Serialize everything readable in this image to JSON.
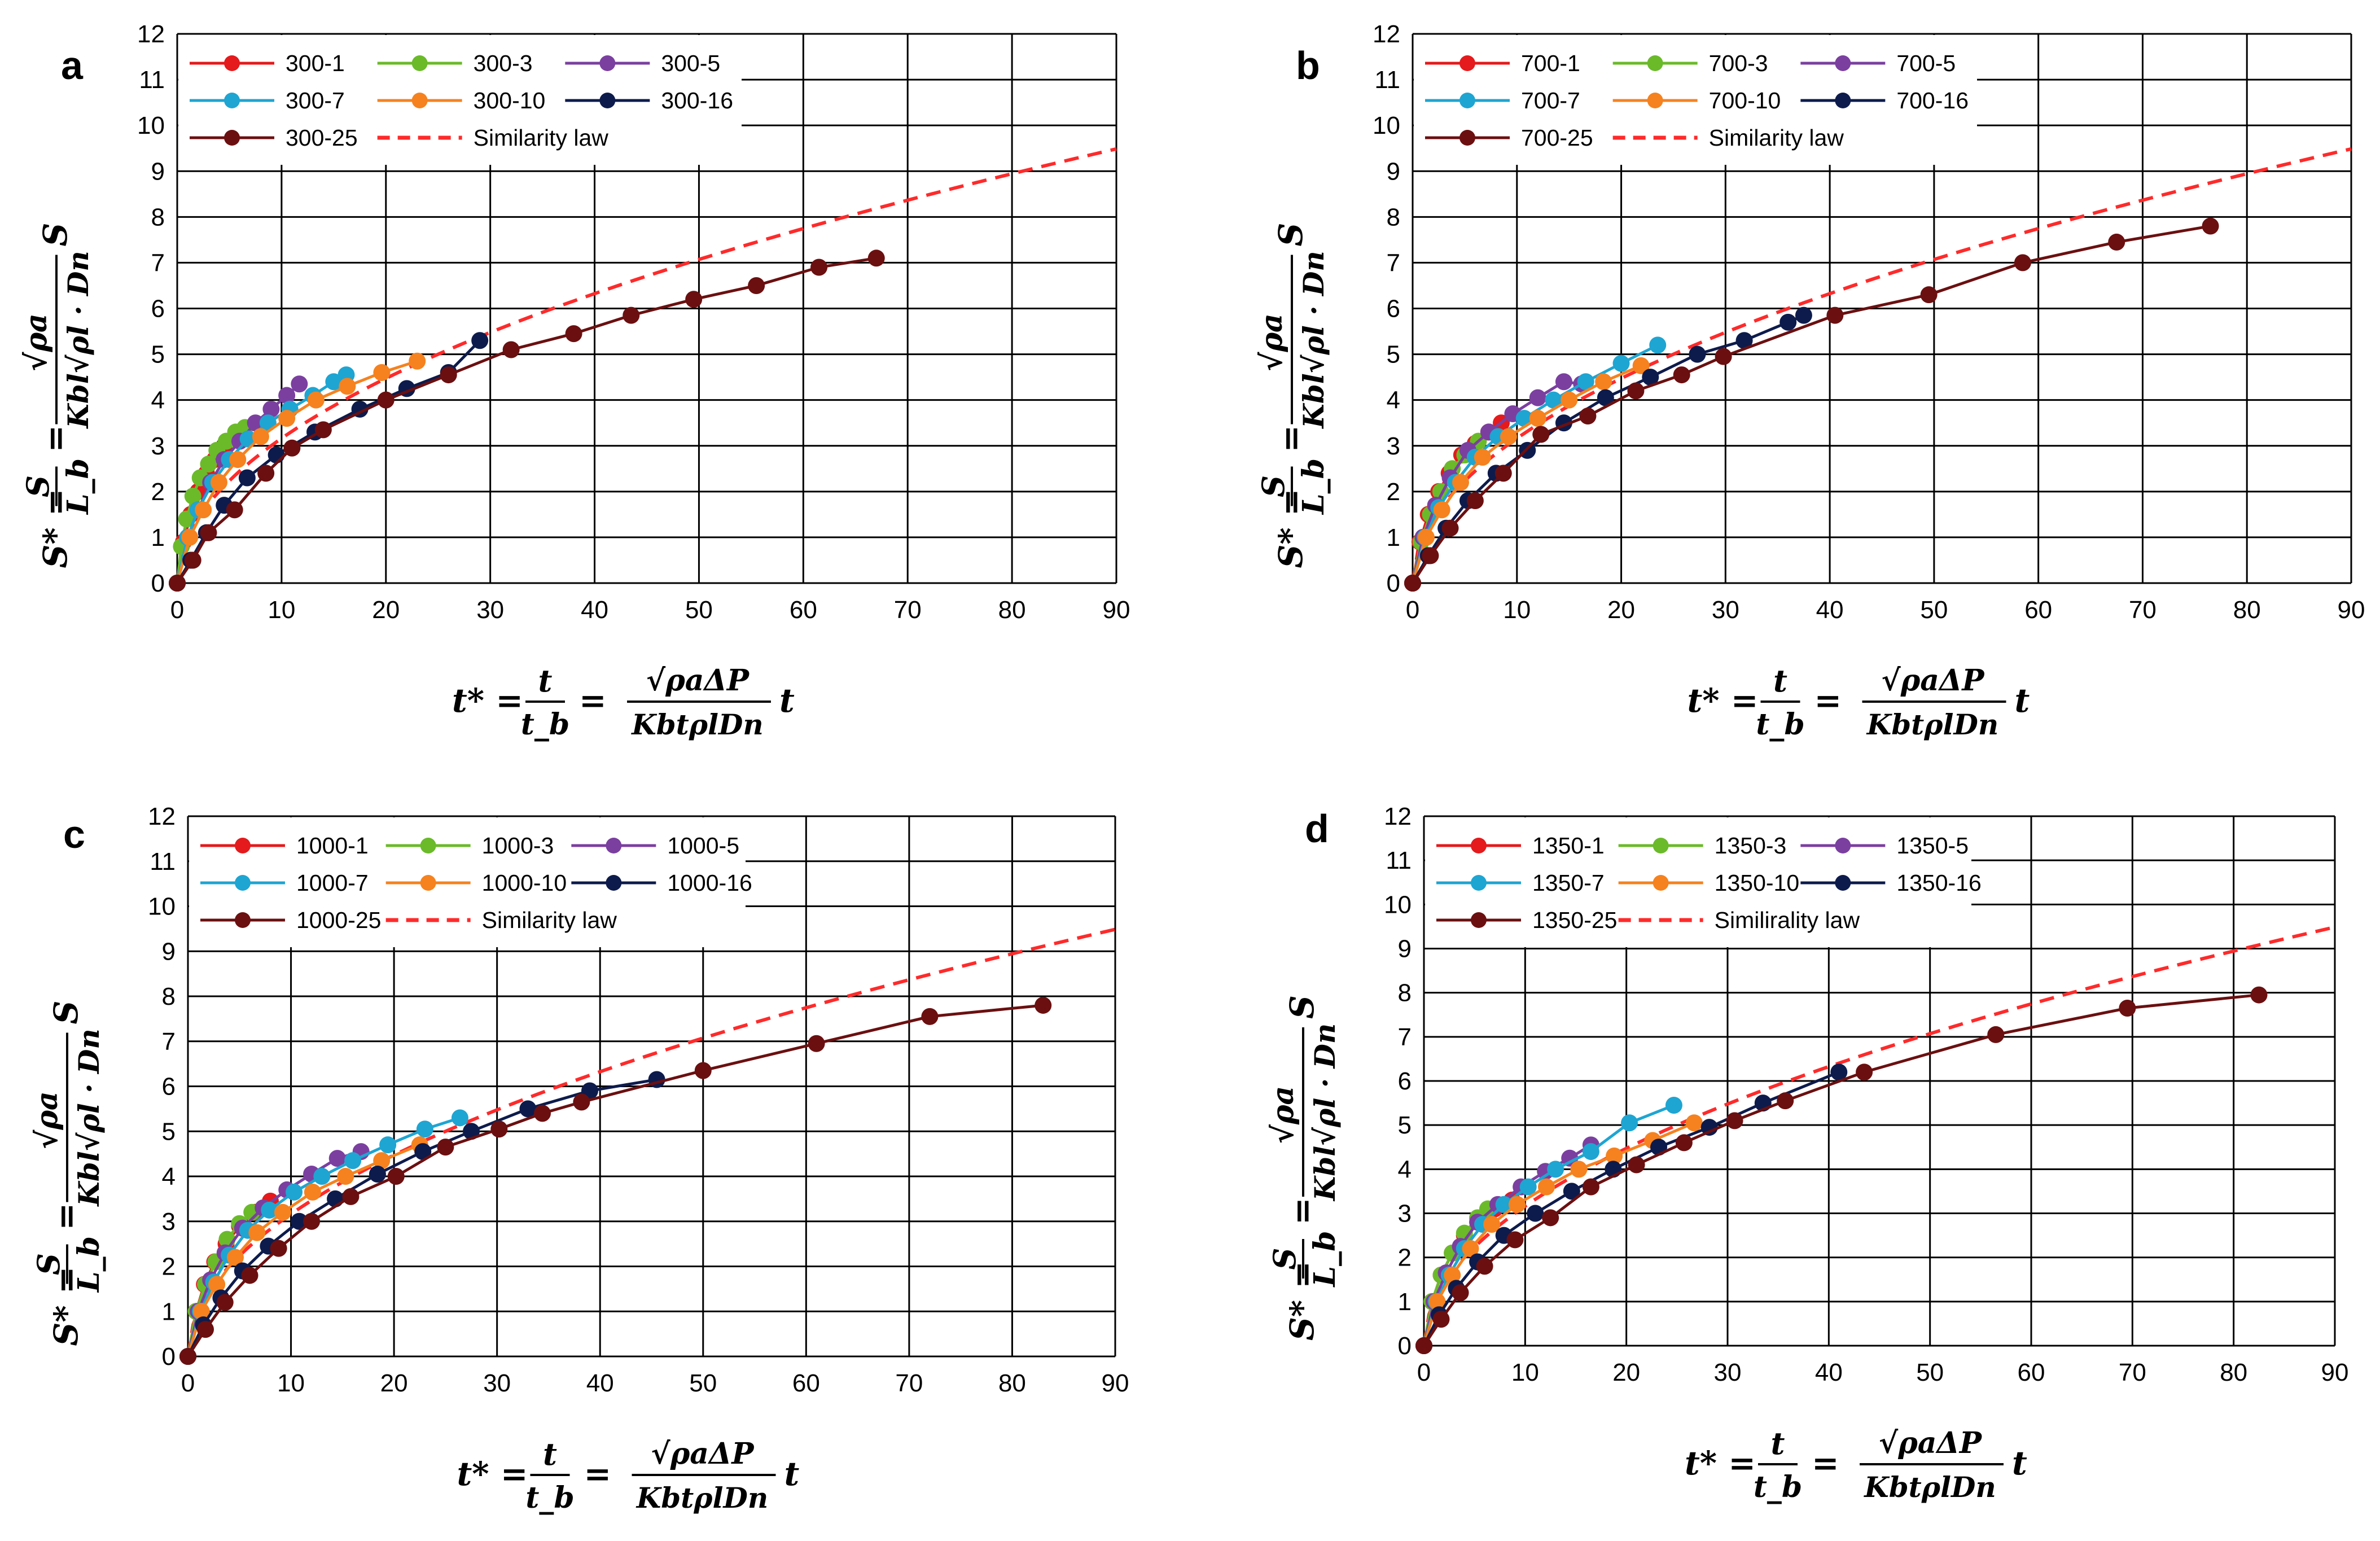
{
  "chart_data": [
    {
      "type": "line",
      "panel_label": "a",
      "xlim": [
        0,
        90
      ],
      "ylim": [
        0,
        12
      ],
      "xticks": [
        "0",
        "10",
        "20",
        "30",
        "40",
        "50",
        "60",
        "70",
        "80",
        "90"
      ],
      "yticks": [
        "0",
        "1",
        "2",
        "3",
        "4",
        "5",
        "6",
        "7",
        "8",
        "9",
        "10",
        "11",
        "12"
      ],
      "grid": true,
      "legend_position": "top-left inside",
      "series": [
        {
          "name": "300-1",
          "color": "#e41a1c",
          "x": [
            0,
            0.6,
            1.3,
            2,
            2.8,
            3.6,
            4.5
          ],
          "y": [
            0,
            0.9,
            1.5,
            2,
            2.4,
            2.7,
            3.0
          ]
        },
        {
          "name": "300-3",
          "color": "#6aba2a",
          "x": [
            0,
            0.4,
            0.9,
            1.5,
            2.2,
            3,
            3.8,
            4.7,
            5.6,
            6.5
          ],
          "y": [
            0,
            0.8,
            1.4,
            1.9,
            2.3,
            2.6,
            2.9,
            3.1,
            3.3,
            3.4
          ]
        },
        {
          "name": "300-5",
          "color": "#7b3fa0",
          "x": [
            0,
            1,
            2,
            3.2,
            4.5,
            6,
            7.5,
            9,
            10.5,
            11.7
          ],
          "y": [
            0,
            1,
            1.6,
            2.2,
            2.7,
            3.1,
            3.5,
            3.8,
            4.1,
            4.35
          ]
        },
        {
          "name": "300-7",
          "color": "#1ea5d2",
          "x": [
            0,
            1,
            2,
            3.4,
            5,
            6.8,
            8.7,
            10.8,
            13,
            15,
            16.2
          ],
          "y": [
            0,
            1,
            1.6,
            2.2,
            2.7,
            3.15,
            3.5,
            3.8,
            4.1,
            4.4,
            4.55
          ]
        },
        {
          "name": "300-10",
          "color": "#f5821f",
          "x": [
            0,
            1.2,
            2.5,
            4,
            5.8,
            8,
            10.5,
            13.3,
            16.3,
            19.6,
            23
          ],
          "y": [
            0,
            1,
            1.6,
            2.2,
            2.7,
            3.2,
            3.6,
            4,
            4.3,
            4.6,
            4.85
          ]
        },
        {
          "name": "300-16",
          "color": "#0d1b4c",
          "x": [
            0,
            1.3,
            2.8,
            4.5,
            6.7,
            9.5,
            13.2,
            17.5,
            22,
            26,
            29
          ],
          "y": [
            0,
            0.5,
            1.1,
            1.7,
            2.3,
            2.8,
            3.3,
            3.8,
            4.25,
            4.6,
            5.3
          ]
        },
        {
          "name": "300-25",
          "color": "#6b0f10",
          "x": [
            0,
            1.5,
            3,
            5.5,
            8.5,
            11,
            14,
            20,
            26,
            32,
            38,
            43.5,
            49.5,
            55.5,
            61.5,
            67
          ],
          "y": [
            0,
            0.5,
            1.1,
            1.6,
            2.4,
            2.95,
            3.35,
            4.0,
            4.55,
            5.1,
            5.45,
            5.85,
            6.2,
            6.5,
            6.9,
            7.1
          ]
        },
        {
          "name": "Similarity law",
          "color": "#ff2a2a",
          "dashed": true,
          "x": [],
          "y": []
        }
      ]
    },
    {
      "type": "line",
      "panel_label": "b",
      "xlim": [
        0,
        90
      ],
      "ylim": [
        0,
        12
      ],
      "xticks": [
        "0",
        "10",
        "20",
        "30",
        "40",
        "50",
        "60",
        "70",
        "80",
        "90"
      ],
      "yticks": [
        "0",
        "1",
        "2",
        "3",
        "4",
        "5",
        "6",
        "7",
        "8",
        "9",
        "10",
        "11",
        "12"
      ],
      "grid": true,
      "legend_position": "top-left inside",
      "series": [
        {
          "name": "700-1",
          "color": "#e41a1c",
          "x": [
            0,
            0.7,
            1.5,
            2.5,
            3.5,
            4.7,
            6,
            7.3,
            8.5
          ],
          "y": [
            0,
            0.9,
            1.5,
            2,
            2.4,
            2.8,
            3.05,
            3.3,
            3.5
          ]
        },
        {
          "name": "700-3",
          "color": "#6aba2a",
          "x": [
            0,
            0.8,
            1.7,
            2.7,
            3.8,
            5,
            6.3
          ],
          "y": [
            0,
            0.9,
            1.5,
            2,
            2.5,
            2.8,
            3.1
          ]
        },
        {
          "name": "700-5",
          "color": "#7b3fa0",
          "x": [
            0,
            1,
            2.2,
            3.6,
            5.3,
            7.3,
            9.6,
            12,
            14.5,
            16.2
          ],
          "y": [
            0,
            1,
            1.7,
            2.3,
            2.9,
            3.3,
            3.7,
            4.05,
            4.4,
            4.35
          ]
        },
        {
          "name": "700-7",
          "color": "#1ea5d2",
          "x": [
            0,
            1.2,
            2.5,
            4.1,
            6,
            8.2,
            10.7,
            13.5,
            16.6,
            20,
            23.5
          ],
          "y": [
            0,
            1,
            1.65,
            2.2,
            2.75,
            3.2,
            3.6,
            4,
            4.4,
            4.8,
            5.2
          ]
        },
        {
          "name": "700-10",
          "color": "#f5821f",
          "x": [
            0,
            1.3,
            2.8,
            4.6,
            6.7,
            9.2,
            12,
            15,
            18.3,
            21.9
          ],
          "y": [
            0,
            1,
            1.6,
            2.2,
            2.75,
            3.2,
            3.6,
            4,
            4.4,
            4.75
          ]
        },
        {
          "name": "700-16",
          "color": "#0d1b4c",
          "x": [
            0,
            1.5,
            3.2,
            5.3,
            8,
            11,
            14.5,
            18.5,
            22.8,
            27.3,
            31.8,
            36,
            37.5
          ],
          "y": [
            0,
            0.6,
            1.2,
            1.8,
            2.4,
            2.9,
            3.5,
            4.05,
            4.5,
            5,
            5.3,
            5.7,
            5.85
          ]
        },
        {
          "name": "700-25",
          "color": "#6b0f10",
          "x": [
            0,
            1.7,
            3.6,
            6,
            8.7,
            12.3,
            16.8,
            21.4,
            25.8,
            29.8,
            40.5,
            49.5,
            58.5,
            67.5,
            76.5
          ],
          "y": [
            0,
            0.6,
            1.2,
            1.8,
            2.4,
            3.25,
            3.65,
            4.2,
            4.55,
            4.95,
            5.85,
            6.3,
            7.0,
            7.45,
            7.8
          ]
        },
        {
          "name": "Similarity law",
          "color": "#ff2a2a",
          "dashed": true,
          "x": [],
          "y": []
        }
      ]
    },
    {
      "type": "line",
      "panel_label": "c",
      "xlim": [
        0,
        90
      ],
      "ylim": [
        0,
        12
      ],
      "xticks": [
        "0",
        "10",
        "20",
        "30",
        "40",
        "50",
        "60",
        "70",
        "80",
        "90"
      ],
      "yticks": [
        "0",
        "1",
        "2",
        "3",
        "4",
        "5",
        "6",
        "7",
        "8",
        "9",
        "10",
        "11",
        "12"
      ],
      "grid": true,
      "legend_position": "top-left inside",
      "series": [
        {
          "name": "1000-1",
          "color": "#e41a1c",
          "x": [
            0,
            0.8,
            1.6,
            2.6,
            3.7,
            5,
            6.5,
            8
          ],
          "y": [
            0,
            1,
            1.6,
            2.1,
            2.5,
            2.9,
            3.2,
            3.45
          ]
        },
        {
          "name": "1000-3",
          "color": "#6aba2a",
          "x": [
            0,
            0.8,
            1.7,
            2.7,
            3.8,
            5,
            6.2
          ],
          "y": [
            0,
            1,
            1.6,
            2.1,
            2.6,
            2.95,
            3.2
          ]
        },
        {
          "name": "1000-5",
          "color": "#7b3fa0",
          "x": [
            0,
            1,
            2.2,
            3.6,
            5.3,
            7.3,
            9.6,
            12,
            14.5,
            16.8
          ],
          "y": [
            0,
            1,
            1.7,
            2.3,
            2.85,
            3.3,
            3.7,
            4.05,
            4.4,
            4.55
          ]
        },
        {
          "name": "1000-7",
          "color": "#1ea5d2",
          "x": [
            0,
            1.2,
            2.5,
            4,
            5.8,
            7.9,
            10.3,
            13,
            16,
            19.4,
            23,
            26.4
          ],
          "y": [
            0,
            1,
            1.65,
            2.25,
            2.8,
            3.25,
            3.65,
            4.0,
            4.35,
            4.7,
            5.05,
            5.3
          ]
        },
        {
          "name": "1000-10",
          "color": "#f5821f",
          "x": [
            0,
            1.3,
            2.8,
            4.6,
            6.7,
            9.2,
            12.1,
            15.3,
            18.8,
            22.5
          ],
          "y": [
            0,
            1,
            1.6,
            2.2,
            2.75,
            3.2,
            3.65,
            4.0,
            4.35,
            4.7
          ]
        },
        {
          "name": "1000-16",
          "color": "#0d1b4c",
          "x": [
            0,
            1.5,
            3.2,
            5.3,
            7.8,
            10.8,
            14.3,
            18.4,
            22.8,
            27.5,
            33,
            39,
            45.5
          ],
          "y": [
            0,
            0.7,
            1.3,
            1.9,
            2.45,
            3.0,
            3.5,
            4.05,
            4.55,
            5,
            5.5,
            5.9,
            6.15
          ]
        },
        {
          "name": "1000-25",
          "color": "#6b0f10",
          "x": [
            0,
            1.7,
            3.6,
            6,
            8.8,
            12,
            15.8,
            20.2,
            25,
            30.2,
            34.4,
            38.2,
            50,
            61,
            72,
            83
          ],
          "y": [
            0,
            0.6,
            1.2,
            1.8,
            2.4,
            3.0,
            3.55,
            4.0,
            4.65,
            5.05,
            5.4,
            5.65,
            6.35,
            6.95,
            7.55,
            7.8
          ]
        },
        {
          "name": "Similarity law",
          "color": "#ff2a2a",
          "dashed": true,
          "x": [],
          "y": []
        }
      ]
    },
    {
      "type": "line",
      "panel_label": "d",
      "xlim": [
        0,
        90
      ],
      "ylim": [
        0,
        12
      ],
      "xticks": [
        "0",
        "10",
        "20",
        "30",
        "40",
        "50",
        "60",
        "70",
        "80",
        "90"
      ],
      "yticks": [
        "0",
        "1",
        "2",
        "3",
        "4",
        "5",
        "6",
        "7",
        "8",
        "9",
        "10",
        "11",
        "12"
      ],
      "grid": true,
      "legend_position": "top-left inside",
      "series": [
        {
          "name": "1350-1",
          "color": "#e41a1c",
          "x": [
            0,
            0.8,
            1.7,
            2.8,
            4,
            5.4,
            7,
            8.7
          ],
          "y": [
            0,
            1,
            1.6,
            2.1,
            2.5,
            2.85,
            3.1,
            3.3
          ]
        },
        {
          "name": "1350-3",
          "color": "#6aba2a",
          "x": [
            0,
            0.8,
            1.7,
            2.8,
            4,
            5.3,
            6.3
          ],
          "y": [
            0,
            1,
            1.6,
            2.1,
            2.55,
            2.9,
            3.1
          ]
        },
        {
          "name": "1350-5",
          "color": "#7b3fa0",
          "x": [
            0,
            1,
            2.2,
            3.6,
            5.3,
            7.3,
            9.6,
            12,
            14.4,
            16.5
          ],
          "y": [
            0,
            1,
            1.65,
            2.25,
            2.8,
            3.2,
            3.6,
            3.95,
            4.25,
            4.55
          ]
        },
        {
          "name": "1350-7",
          "color": "#1ea5d2",
          "x": [
            0,
            1.2,
            2.5,
            4,
            5.8,
            7.9,
            10.3,
            13,
            16.5,
            20.3,
            24.7
          ],
          "y": [
            0,
            1,
            1.6,
            2.2,
            2.75,
            3.2,
            3.6,
            4,
            4.4,
            5.05,
            5.45
          ]
        },
        {
          "name": "1350-10",
          "color": "#f5821f",
          "x": [
            0,
            1.3,
            2.8,
            4.6,
            6.7,
            9.2,
            12.1,
            15.3,
            18.8,
            22.6,
            26.7
          ],
          "y": [
            0,
            1,
            1.6,
            2.2,
            2.75,
            3.2,
            3.6,
            4.0,
            4.3,
            4.65,
            5.05
          ]
        },
        {
          "name": "1350-16",
          "color": "#0d1b4c",
          "x": [
            0,
            1.5,
            3.2,
            5.3,
            7.9,
            11,
            14.6,
            18.7,
            23.2,
            28.2,
            33.5,
            41
          ],
          "y": [
            0,
            0.7,
            1.3,
            1.9,
            2.5,
            3.0,
            3.5,
            4.0,
            4.5,
            4.95,
            5.5,
            6.2
          ]
        },
        {
          "name": "1350-25",
          "color": "#6b0f10",
          "x": [
            0,
            1.7,
            3.6,
            6,
            9,
            12.5,
            16.5,
            21,
            25.7,
            30.7,
            35.7,
            43.5,
            56.5,
            69.5,
            82.5
          ],
          "y": [
            0,
            0.6,
            1.2,
            1.8,
            2.4,
            2.9,
            3.6,
            4.1,
            4.6,
            5.1,
            5.55,
            6.2,
            7.05,
            7.65,
            7.95
          ]
        },
        {
          "name": "Similirality law",
          "color": "#ff2a2a",
          "dashed": true,
          "x": [],
          "y": []
        }
      ]
    }
  ],
  "similarity_law": {
    "coefficient": 1.0,
    "exponent": 0.5
  },
  "axis_labels": {
    "y": {
      "lhs": "S* =",
      "frac1_num": "S",
      "frac1_den": "L_b",
      "eq": "=",
      "frac2_num": "√ρa",
      "frac2_den": "Kbl√ρl · Dn",
      "tail": "S"
    },
    "x": {
      "lhs": "t* =",
      "frac1_num": "t",
      "frac1_den": "t_b",
      "eq": "=",
      "frac2_num": "√ρaΔP",
      "frac2_den": "KbtρlDn",
      "tail": "t"
    }
  }
}
